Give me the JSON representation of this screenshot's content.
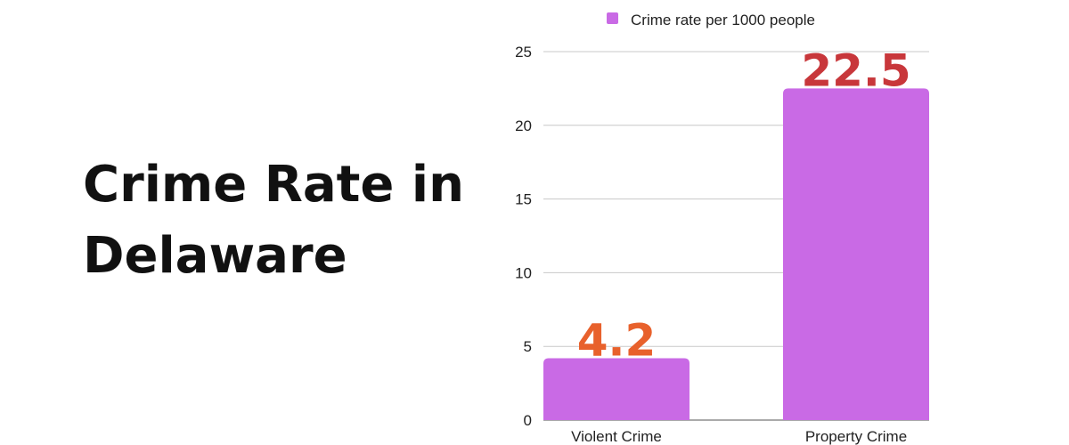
{
  "page_title": "Crime Rate in Delaware",
  "chart_data": {
    "type": "bar",
    "categories": [
      "Violent Crime",
      "Property Crime"
    ],
    "series": [
      {
        "name": "Crime rate per 1000 people",
        "values": [
          4.2,
          22.5
        ]
      }
    ],
    "data_labels": [
      "4.2",
      "22.5"
    ],
    "data_label_colors": [
      "#e8612c",
      "#c8373b"
    ],
    "bar_color": "#c96ae5",
    "ylim": [
      0,
      25
    ],
    "yticks": [
      "0",
      "5",
      "10",
      "15",
      "20",
      "25"
    ],
    "legend_position": "top",
    "grid": true
  }
}
